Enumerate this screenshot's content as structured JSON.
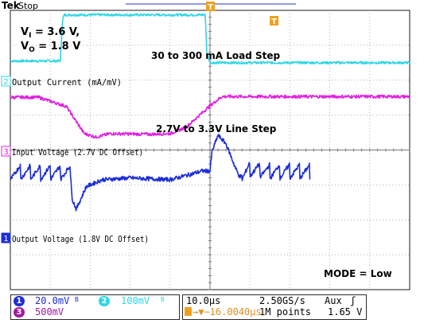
{
  "header": {
    "brand": "Tek",
    "state": "Stop"
  },
  "annotations": {
    "vi_label": "V",
    "vi_sub": "I",
    "vi_value": " = 3.6 V,",
    "vo_label": "V",
    "vo_sub": "O",
    "vo_value": " = 1.8 V",
    "load_step": "30 to 300 mA Load Step",
    "line_step": "2.7V to 3.3V Line Step",
    "mode": "MODE = Low"
  },
  "channels": {
    "ch2": {
      "marker": "2",
      "label": "Output Current (mA/mV)",
      "color": "#2fd6e6"
    },
    "ch3": {
      "marker": "3",
      "label": "Input Voltage (2.7V DC Offset)",
      "color": "#e020e0"
    },
    "ch1": {
      "marker": "1",
      "label": "Output Voltage (1.8V DC Offset)",
      "color": "#1c2ed6"
    }
  },
  "trigger": {
    "marker": "T"
  },
  "status": {
    "ch1_num": "1",
    "ch1_scale": "20.0mV",
    "ch2_num": "2",
    "ch2_scale": "100mV",
    "ch3_num": "3",
    "ch3_scale": "500mV",
    "bw_symbol": "B",
    "timebase": "10.0µs",
    "sample_rate": "2.50GS/s",
    "trigger_source": "Aux",
    "trigger_slope": "ʃ",
    "delay": "→▼−16.0040µs",
    "record": "1M points",
    "trigger_level": "1.65 V"
  },
  "chart_data": {
    "type": "line",
    "title": "",
    "xlabel": "",
    "ylabel": "",
    "time_per_div_us": 10,
    "x_divisions": 10,
    "y_divisions": 8,
    "grid": true,
    "series": [
      {
        "name": "Output Current (mA/mV)",
        "channel": 2,
        "color": "#2fd6e6",
        "unit": "div",
        "points": [
          [
            -50,
            2.55
          ],
          [
            -37.5,
            2.55
          ],
          [
            -36.9,
            3.75
          ],
          [
            -36.5,
            3.87
          ],
          [
            -1.2,
            3.87
          ],
          [
            -0.8,
            2.8
          ],
          [
            0,
            2.5
          ],
          [
            50,
            2.5
          ]
        ]
      },
      {
        "name": "Input Voltage (2.7V DC Offset)",
        "channel": 3,
        "color": "#e020e0",
        "unit": "div",
        "points": [
          [
            -50,
            1.51
          ],
          [
            -43,
            1.51
          ],
          [
            -36,
            1.25
          ],
          [
            -31.5,
            0.47
          ],
          [
            -28.5,
            0.37
          ],
          [
            -25,
            0.47
          ],
          [
            -15,
            0.45
          ],
          [
            -10,
            0.47
          ],
          [
            -6,
            0.65
          ],
          [
            0,
            1.27
          ],
          [
            3,
            1.53
          ],
          [
            50,
            1.53
          ]
        ]
      },
      {
        "name": "Output Voltage (1.8V DC Offset)",
        "channel": 1,
        "color": "#1c2ed6",
        "unit": "div",
        "points": [
          [
            -50,
            -0.65
          ],
          [
            -35,
            -0.65
          ],
          [
            -34.5,
            -1.4
          ],
          [
            -33.5,
            -1.7
          ],
          [
            -31,
            -1.05
          ],
          [
            -27,
            -0.85
          ],
          [
            -20,
            -0.8
          ],
          [
            -10,
            -0.85
          ],
          [
            -5,
            -0.7
          ],
          [
            -2,
            -0.6
          ],
          [
            0,
            -0.6
          ],
          [
            0.5,
            -0.05
          ],
          [
            2,
            0.42
          ],
          [
            4,
            0.18
          ],
          [
            6.5,
            -0.55
          ],
          [
            7.5,
            -0.78
          ],
          [
            10,
            -0.55
          ],
          [
            15,
            -0.62
          ],
          [
            20,
            -0.6
          ],
          [
            25,
            -0.62
          ]
        ]
      }
    ]
  }
}
